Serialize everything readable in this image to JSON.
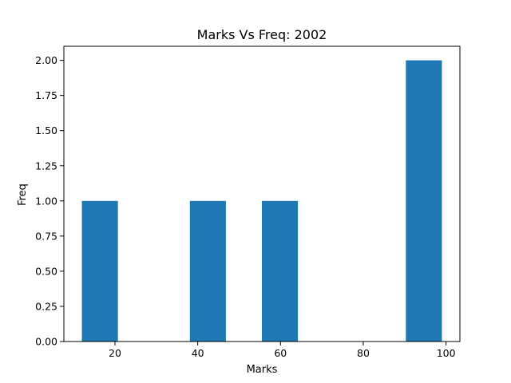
{
  "chart_data": {
    "type": "bar",
    "title": "Marks Vs Freq:  2002",
    "xlabel": "Marks",
    "ylabel": "Freq",
    "xlim": [
      7.65,
      103.35
    ],
    "ylim": [
      0,
      2.1
    ],
    "x_ticks": [
      20,
      40,
      60,
      80,
      100
    ],
    "y_ticks": [
      0,
      0.25,
      0.5,
      0.75,
      1.0,
      1.25,
      1.5,
      1.75,
      2.0
    ],
    "x_tick_labels": [
      "20",
      "40",
      "60",
      "80",
      "100"
    ],
    "y_tick_labels": [
      "0.00",
      "0.25",
      "0.50",
      "0.75",
      "1.00",
      "1.25",
      "1.50",
      "1.75",
      "2.00"
    ],
    "grid": false,
    "bar_color": "#1f77b4",
    "bars": [
      {
        "x_start": 12.0,
        "x_end": 20.7,
        "value": 1
      },
      {
        "x_start": 38.1,
        "x_end": 46.8,
        "value": 1
      },
      {
        "x_start": 55.5,
        "x_end": 64.2,
        "value": 1
      },
      {
        "x_start": 90.3,
        "x_end": 99.0,
        "value": 2
      }
    ]
  }
}
